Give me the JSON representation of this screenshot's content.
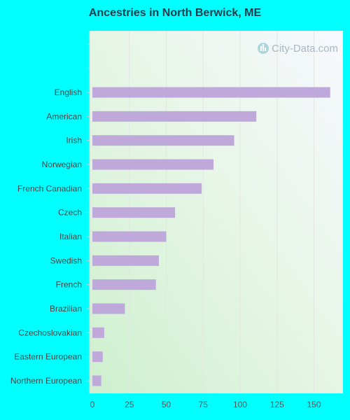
{
  "chart_data": {
    "type": "bar",
    "orientation": "horizontal",
    "title": "Ancestries in North Berwick, ME",
    "categories": [
      "English",
      "American",
      "Irish",
      "Norwegian",
      "French Canadian",
      "Czech",
      "Italian",
      "Swedish",
      "French",
      "Brazilian",
      "Czechoslovakian",
      "Eastern European",
      "Northern European"
    ],
    "values": [
      161,
      111,
      96,
      82,
      74,
      56,
      50,
      45,
      43,
      22,
      8,
      7,
      6
    ],
    "xlim": [
      0,
      170
    ],
    "xticks": [
      "0",
      "25",
      "50",
      "75",
      "100",
      "125",
      "150"
    ],
    "grid": true,
    "bar_color": "#bfa8da",
    "background_color": "#00ffff",
    "watermark": "City-Data.com"
  }
}
